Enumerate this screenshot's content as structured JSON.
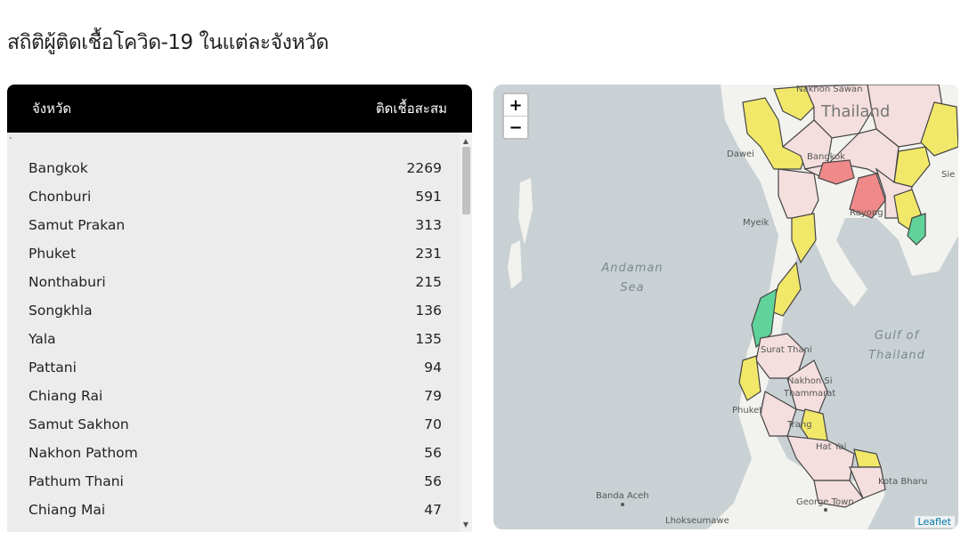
{
  "title": "สถิติผู้ติดเชื้อโควิด-19 ในแต่ละจังหวัด",
  "table": {
    "col_province": "จังหวัด",
    "col_cases": "ติดเชื้อสะสม",
    "dash": "-",
    "rows": [
      {
        "province": "Bangkok",
        "cases": "2269"
      },
      {
        "province": "Chonburi",
        "cases": "591"
      },
      {
        "province": "Samut Prakan",
        "cases": "313"
      },
      {
        "province": "Phuket",
        "cases": "231"
      },
      {
        "province": "Nonthaburi",
        "cases": "215"
      },
      {
        "province": "Songkhla",
        "cases": "136"
      },
      {
        "province": "Yala",
        "cases": "135"
      },
      {
        "province": "Pattani",
        "cases": "94"
      },
      {
        "province": "Chiang Rai",
        "cases": "79"
      },
      {
        "province": "Samut Sakhon",
        "cases": "70"
      },
      {
        "province": "Nakhon Pathom",
        "cases": "56"
      },
      {
        "province": "Pathum Thani",
        "cases": "56"
      },
      {
        "province": "Chiang Mai",
        "cases": "47"
      }
    ],
    "scroll_up": "▲",
    "scroll_down": "▼"
  },
  "map": {
    "zoom_in": "+",
    "zoom_out": "−",
    "attribution": "Leaflet",
    "labels": {
      "thailand": "Thailand",
      "andaman_1": "Andaman",
      "andaman_2": "Sea",
      "gulf_1": "Gulf of",
      "gulf_2": "Thailand",
      "dawei": "Dawei",
      "myeik": "Myeik",
      "bangkok": "Bangkok",
      "rayong": "Rayong",
      "surat": "Surat Thani",
      "nakhon": "Nakhon Si",
      "nakhon2": "Thammarat",
      "phuket": "Phuket",
      "trang": "Trang",
      "hat_yai": "Hat Yai",
      "kota_bharu": "Kota Bharu",
      "banda_aceh": "Banda Aceh",
      "george_town": "George Town",
      "lhokseumawe": "Lhokseumawe",
      "sie": "Sie",
      "nakhon_sawan": "Nakhon Sawan"
    },
    "colors": {
      "water": "#c9d1d4",
      "land": "#f2f2ee",
      "pink": "#f4dede",
      "yellow": "#f1e86a",
      "red": "#f08a8a",
      "green": "#5fd39a",
      "border": "#444444"
    }
  }
}
